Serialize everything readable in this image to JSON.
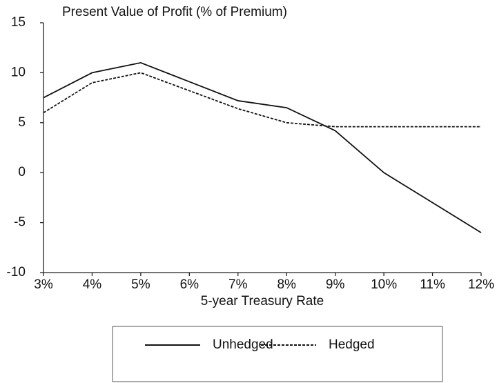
{
  "chart_data": {
    "type": "line",
    "title": "Present Value of Profit  (% of Premium)",
    "x_label": "5-year Treasury Rate",
    "categories": [
      "3%",
      "4%",
      "5%",
      "6%",
      "7%",
      "8%",
      "9%",
      "10%",
      "11%",
      "12%"
    ],
    "series": [
      {
        "name": "Unhedged",
        "color": "#111111",
        "dash": "none",
        "values": [
          7.5,
          10,
          11,
          9.1,
          7.2,
          6.5,
          4.2,
          0,
          -3,
          -6
        ]
      },
      {
        "name": "Hedged",
        "color": "#111111",
        "dash": "4,2",
        "values": [
          6,
          9,
          10,
          8.2,
          6.4,
          5,
          4.6,
          4.6,
          4.6,
          4.6
        ]
      }
    ],
    "ylim": [
      -10,
      15
    ],
    "yticks": [
      -10,
      -5,
      0,
      5,
      10,
      15
    ],
    "grid": false
  }
}
